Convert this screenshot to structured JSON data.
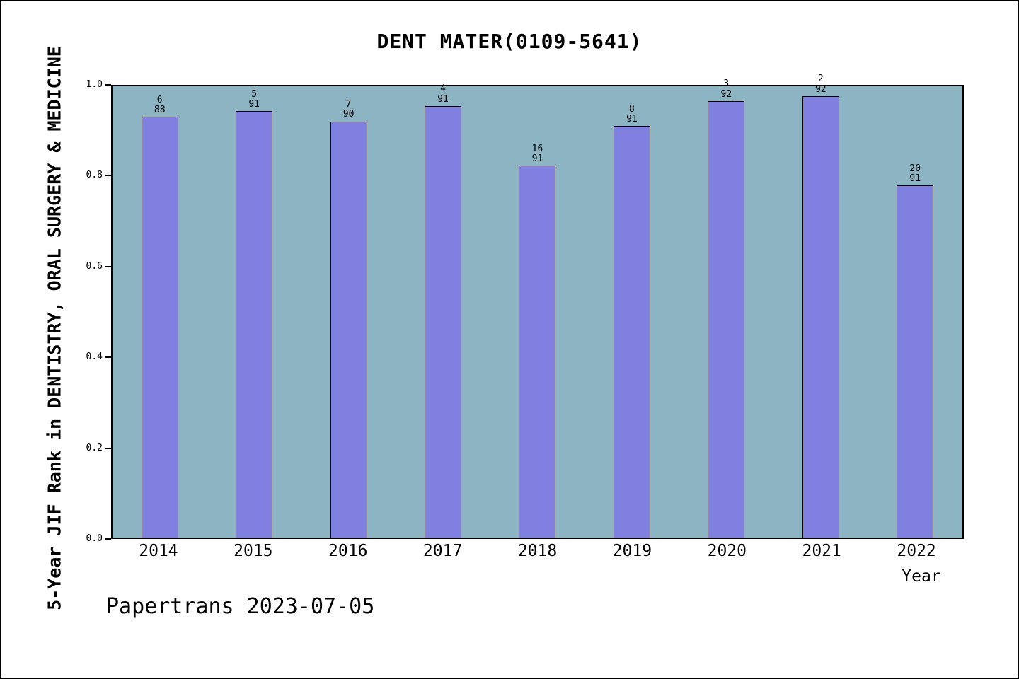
{
  "title": "DENT MATER(0109-5641)",
  "footer": "Papertrans 2023-07-05",
  "chart_data": {
    "type": "bar",
    "title": "DENT MATER(0109-5641)",
    "xlabel": "Year",
    "ylabel": "5-Year JIF Rank in DENTISTRY, ORAL SURGERY & MEDICINE",
    "ylim": [
      0.0,
      1.0
    ],
    "yticks": [
      0.0,
      0.2,
      0.4,
      0.6,
      0.8,
      1.0
    ],
    "grid": false,
    "legend": false,
    "categories": [
      "2014",
      "2015",
      "2016",
      "2017",
      "2018",
      "2019",
      "2020",
      "2021",
      "2022"
    ],
    "values": [
      0.932,
      0.945,
      0.922,
      0.956,
      0.824,
      0.912,
      0.967,
      0.978,
      0.78
    ],
    "bar_labels": [
      {
        "rank": "6",
        "total": "88"
      },
      {
        "rank": "5",
        "total": "91"
      },
      {
        "rank": "7",
        "total": "90"
      },
      {
        "rank": "4",
        "total": "91"
      },
      {
        "rank": "16",
        "total": "91"
      },
      {
        "rank": "8",
        "total": "91"
      },
      {
        "rank": "3",
        "total": "92"
      },
      {
        "rank": "2",
        "total": "92"
      },
      {
        "rank": "20",
        "total": "91"
      }
    ],
    "colors": {
      "bar_fill": "#8080e0",
      "bar_edge": "#000000",
      "plot_background": "#8db4c3",
      "figure_background": "#ffffff",
      "text": "#000000"
    }
  }
}
